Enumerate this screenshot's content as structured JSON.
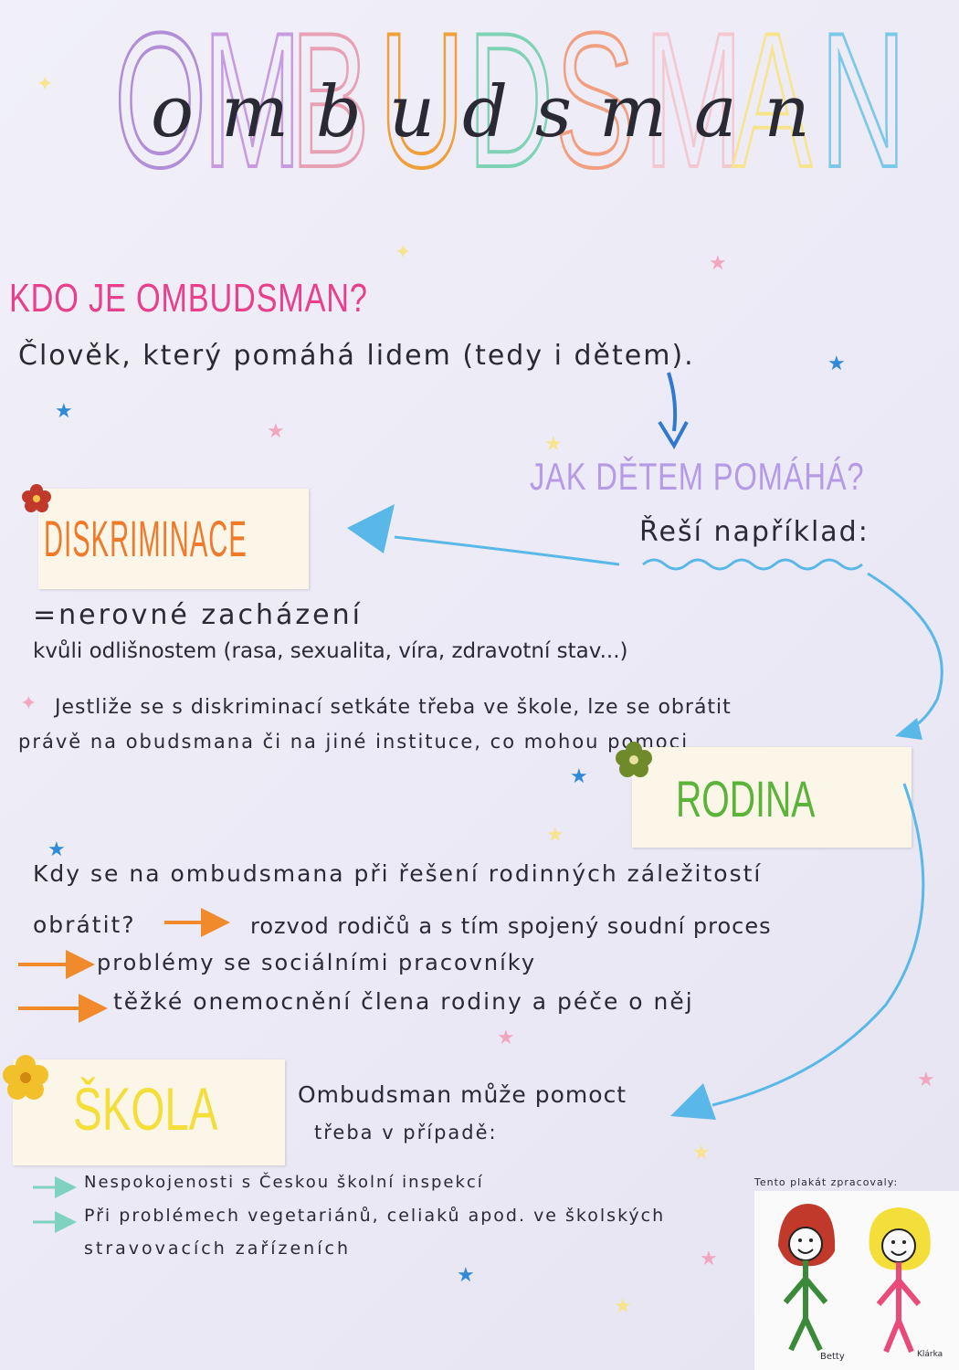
{
  "title": {
    "big_letters": "OMBUDSMAN",
    "cursive": "ombudsman",
    "letter_colors": [
      "#b08fd6",
      "#c79be0",
      "#e7a0b4",
      "#f0a03a",
      "#7fd2b4",
      "#f0a080",
      "#f4c8d0",
      "#f7e48e",
      "#7bc8e8",
      "#f08a3a"
    ]
  },
  "section_kdo": {
    "heading": "KDO JE OMBUDSMAN?",
    "text": "Člověk, který pomáhá lidem (tedy i dětem)."
  },
  "section_jak": {
    "heading": "JAK DĚTEM POMÁHÁ?",
    "subheading": "Řeší například:"
  },
  "diskriminace": {
    "label": "DISKRIMINACE",
    "line1": "=nerovné zacházení",
    "line2": "kvůli odlišnostem (rasa, sexualita, víra, zdravotní stav...)",
    "para1": "Jestliže se s diskriminací setkáte třeba ve škole, lze se obrátit",
    "para2": "právě na obudsmana či na jiné instituce, co mohou pomoci"
  },
  "rodina": {
    "label": "RODINA",
    "question1": "Kdy se na ombudsmana při řešení rodinných záležitostí",
    "question2": "obrátit?",
    "item1": "rozvod rodičů a s tím spojený soudní proces",
    "item2": "problémy se sociálními pracovníky",
    "item3": "těžké onemocnění člena rodiny a péče o něj"
  },
  "skola": {
    "label": "ŠKOLA",
    "intro1": "Ombudsman může pomoct",
    "intro2": "třeba v případě:",
    "item1": "Nespokojenosti s Českou školní inspekcí",
    "item2a": "Při problémech vegetariánů, celiaků apod. ve školských",
    "item2b": "stravovacích zařízeních"
  },
  "credits": {
    "heading": "Tento plakát zpracovaly:",
    "author1": "Betty",
    "author2": "Klárka"
  },
  "colors": {
    "pink_heading": "#e8408c",
    "purple_heading": "#b59be6",
    "orange_label": "#ee7a2a",
    "green_label": "#5bb33a",
    "yellow_label": "#f4df3a",
    "blue_arrow": "#5ab8e8",
    "orange_arrow": "#f08a2a",
    "teal_arrow": "#7fd2c0",
    "ink": "#2a2a35"
  }
}
